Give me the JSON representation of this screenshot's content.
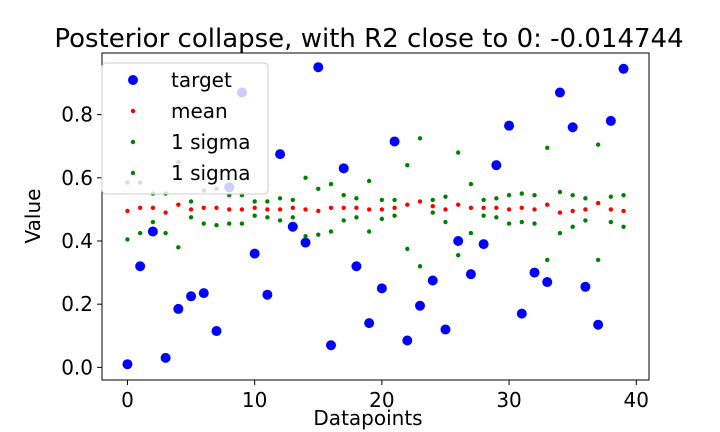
{
  "chart_data": {
    "type": "scatter",
    "title": "Posterior collapse, with R2 close to 0: -0.014744",
    "xlabel": "Datapoints",
    "ylabel": "Value",
    "xlim": [
      -2.0,
      41.0
    ],
    "ylim": [
      -0.04,
      0.995
    ],
    "xticks": [
      0,
      10,
      20,
      30,
      40
    ],
    "yticks": [
      0.0,
      0.2,
      0.4,
      0.6,
      0.8
    ],
    "xtick_labels": [
      "0",
      "10",
      "20",
      "30",
      "40"
    ],
    "ytick_labels": [
      "0.0",
      "0.2",
      "0.4",
      "0.6",
      "0.8"
    ],
    "legend_position": "upper-left",
    "x": [
      0,
      1,
      2,
      3,
      4,
      5,
      6,
      7,
      8,
      9,
      10,
      11,
      12,
      13,
      14,
      15,
      16,
      17,
      18,
      19,
      20,
      21,
      22,
      23,
      24,
      25,
      26,
      27,
      28,
      29,
      30,
      31,
      32,
      33,
      34,
      35,
      36,
      37,
      38,
      39
    ],
    "series": [
      {
        "name": "target",
        "color": "#0000ff",
        "marker": "large-dot",
        "values": [
          0.01,
          0.32,
          0.43,
          0.03,
          0.185,
          0.225,
          0.235,
          0.115,
          0.57,
          0.87,
          0.36,
          0.23,
          0.675,
          0.445,
          0.395,
          0.95,
          0.07,
          0.63,
          0.32,
          0.14,
          0.25,
          0.715,
          0.085,
          0.195,
          0.275,
          0.12,
          0.4,
          0.295,
          0.39,
          0.64,
          0.765,
          0.17,
          0.3,
          0.27,
          0.87,
          0.76,
          0.255,
          0.135,
          0.78,
          0.945
        ]
      },
      {
        "name": "mean",
        "color": "#ff0000",
        "marker": "small-dot",
        "values": [
          0.495,
          0.505,
          0.505,
          0.49,
          0.515,
          0.5,
          0.505,
          0.505,
          0.5,
          0.5,
          0.505,
          0.5,
          0.5,
          0.505,
          0.5,
          0.495,
          0.505,
          0.505,
          0.505,
          0.5,
          0.5,
          0.505,
          0.515,
          0.525,
          0.51,
          0.5,
          0.515,
          0.505,
          0.505,
          0.505,
          0.5,
          0.505,
          0.5,
          0.515,
          0.49,
          0.495,
          0.5,
          0.52,
          0.5,
          0.495
        ]
      },
      {
        "name": "1 sigma",
        "color": "#008000",
        "marker": "small-dot",
        "values": [
          0.585,
          0.585,
          0.55,
          0.55,
          0.65,
          0.525,
          0.56,
          0.565,
          0.545,
          0.545,
          0.525,
          0.525,
          0.535,
          0.53,
          0.6,
          0.565,
          0.58,
          0.545,
          0.535,
          0.59,
          0.53,
          0.53,
          0.64,
          0.725,
          0.53,
          0.54,
          0.68,
          0.58,
          0.53,
          0.535,
          0.545,
          0.55,
          0.545,
          0.695,
          0.555,
          0.545,
          0.535,
          0.705,
          0.54,
          0.545
        ]
      },
      {
        "name": "1 sigma",
        "color": "#008000",
        "marker": "small-dot",
        "values": [
          0.405,
          0.425,
          0.46,
          0.425,
          0.38,
          0.475,
          0.455,
          0.45,
          0.455,
          0.455,
          0.48,
          0.475,
          0.465,
          0.475,
          0.415,
          0.42,
          0.43,
          0.465,
          0.475,
          0.43,
          0.47,
          0.48,
          0.375,
          0.32,
          0.49,
          0.46,
          0.355,
          0.425,
          0.48,
          0.475,
          0.455,
          0.46,
          0.455,
          0.34,
          0.425,
          0.445,
          0.465,
          0.34,
          0.46,
          0.445
        ]
      }
    ]
  }
}
